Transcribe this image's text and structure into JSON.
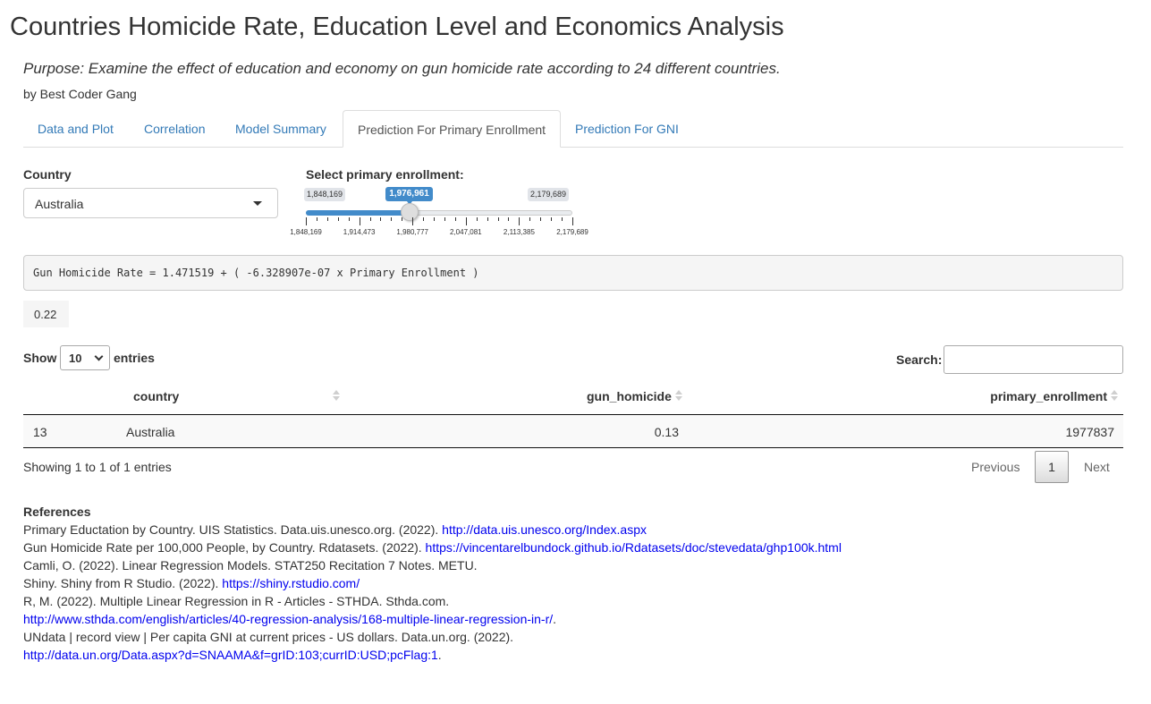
{
  "page": {
    "title": "Countries Homicide Rate, Education Level and Economics Analysis",
    "purpose": "Purpose: Examine the effect of education and economy on gun homicide rate according to 24 different countries.",
    "byline": "by Best Coder Gang"
  },
  "tabs": [
    {
      "label": "Data and Plot",
      "active": false
    },
    {
      "label": "Correlation",
      "active": false
    },
    {
      "label": "Model Summary",
      "active": false
    },
    {
      "label": "Prediction For Primary Enrollment",
      "active": true
    },
    {
      "label": "Prediction For GNI",
      "active": false
    }
  ],
  "controls": {
    "country_label": "Country",
    "country_value": "Australia",
    "slider_label": "Select primary enrollment:",
    "slider": {
      "min": 1848169,
      "max": 2179689,
      "value": 1976961,
      "min_label": "1,848,169",
      "max_label": "2,179,689",
      "value_label": "1,976,961",
      "grid_labels": [
        "1,848,169",
        "1,914,473",
        "1,980,777",
        "2,047,081",
        "2,113,385",
        "2,179,689"
      ]
    }
  },
  "formula": "Gun Homicide Rate = 1.471519 + ( -6.328907e-07 x Primary Enrollment )",
  "prediction": "0.22",
  "table": {
    "show_label": "Show",
    "entries_label": "entries",
    "length_value": "10",
    "search_label": "Search:",
    "search_value": "",
    "columns": [
      "country",
      "gun_homicide",
      "primary_enrollment"
    ],
    "rows": [
      {
        "index": "13",
        "country": "Australia",
        "gun_homicide": "0.13",
        "primary_enrollment": "1977837"
      }
    ],
    "info": "Showing 1 to 1 of 1 entries",
    "pagination": {
      "previous": "Previous",
      "current": "1",
      "next": "Next"
    }
  },
  "references": {
    "heading": "References",
    "items": [
      {
        "text": "Primary Eductation by Country. UIS Statistics. Data.uis.unesco.org. (2022). ",
        "link": "http://data.uis.unesco.org/Index.aspx",
        "after": ""
      },
      {
        "text": "Gun Homicide Rate per 100,000 People, by Country. Rdatasets. (2022). ",
        "link": "https://vincentarelbundock.github.io/Rdatasets/doc/stevedata/ghp100k.html",
        "after": ""
      },
      {
        "text": "Camli, O. (2022). Linear Regression Models. STAT250 Recitation 7 Notes. METU.",
        "link": "",
        "after": ""
      },
      {
        "text": "Shiny. Shiny from R Studio. (2022). ",
        "link": "https://shiny.rstudio.com/",
        "after": ""
      },
      {
        "text": "R, M. (2022). Multiple Linear Regression in R - Articles - STHDA. Sthda.com.",
        "link": "",
        "after": ""
      },
      {
        "text": "",
        "link": "http://www.sthda.com/english/articles/40-regression-analysis/168-multiple-linear-regression-in-r/",
        "after": "."
      },
      {
        "text": "UNdata | record view | Per capita GNI at current prices - US dollars. Data.un.org. (2022).",
        "link": "",
        "after": ""
      },
      {
        "text": "",
        "link": "http://data.un.org/Data.aspx?d=SNAAMA&f=grID:103;currID:USD;pcFlag:1",
        "after": "."
      }
    ]
  },
  "colors": {
    "link": "#337ab7",
    "slider_accent": "#428bca",
    "reference_link": "#0000ee"
  }
}
